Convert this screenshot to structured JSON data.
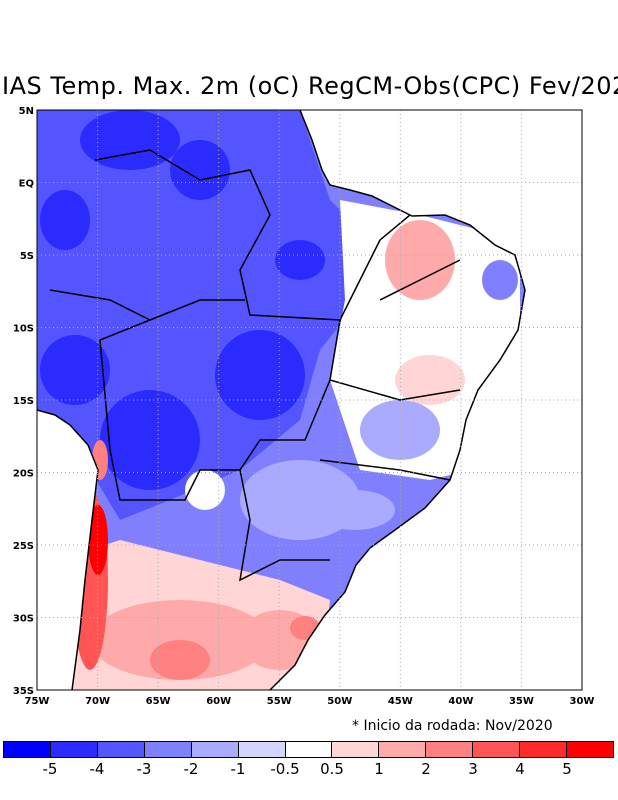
{
  "title": "IAS Temp. Max. 2m (oC) RegCM-Obs(CPC) Fev/202",
  "note": "* Inicio da rodada: Nov/2020",
  "lat_labels": [
    "5N",
    "EQ",
    "5S",
    "10S",
    "15S",
    "20S",
    "25S",
    "30S",
    "35S"
  ],
  "lon_labels": [
    "75W",
    "70W",
    "65W",
    "60W",
    "55W",
    "50W",
    "45W",
    "40W",
    "35W",
    "30W"
  ],
  "colorbar": {
    "labels": [
      "-5",
      "-4",
      "-3",
      "-2",
      "-1",
      "-0.5",
      "0.5",
      "1",
      "2",
      "3",
      "4",
      "5"
    ],
    "colors": [
      "#0000ff",
      "#2b2bff",
      "#5555ff",
      "#8080ff",
      "#aaaaff",
      "#d5d5ff",
      "#ffffff",
      "#ffd5d5",
      "#ffaaaa",
      "#ff8080",
      "#ff5555",
      "#ff2b2b",
      "#ff0000"
    ]
  }
}
